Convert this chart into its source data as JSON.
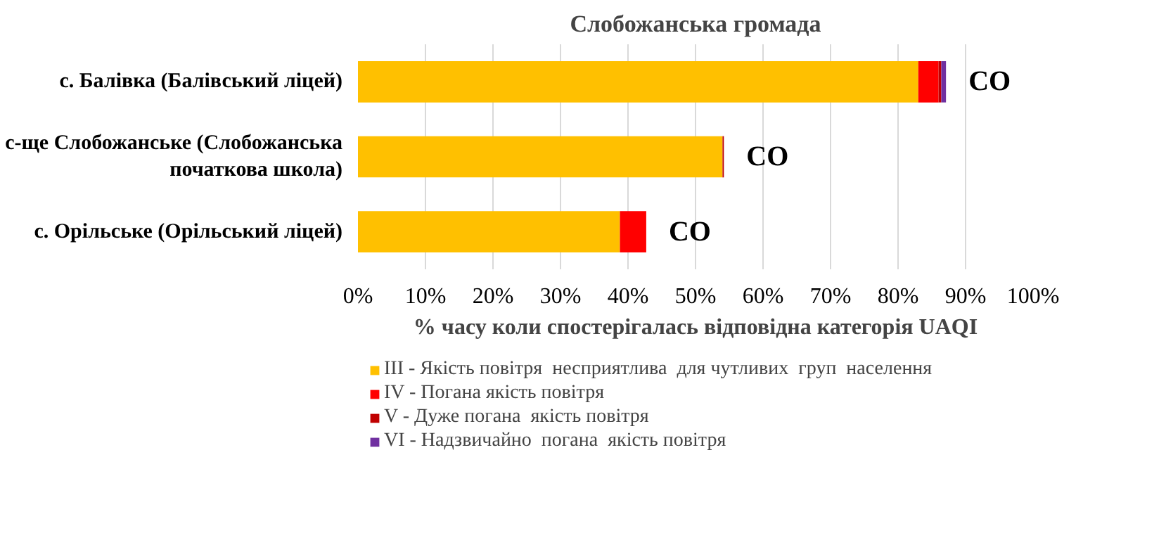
{
  "chart_data": {
    "type": "bar",
    "orientation": "horizontal",
    "stacked": true,
    "title": "Слобожанська громада",
    "xlabel": "% часу коли спостерігалась відповідна категорія UAQI",
    "categories": [
      "с. Балівка (Балівський ліцей)",
      "с-ще Слобожанське (Слобожанська\nпочаткова школа)",
      "с. Орільське (Орільський ліцей)"
    ],
    "series": [
      {
        "name": "III - Якість повітря  несприятлива  для чутливих  груп  населення",
        "color": "#ffc000",
        "values": [
          83.0,
          54.0,
          38.8
        ]
      },
      {
        "name": "IV - Погана якість повітря",
        "color": "#ff0000",
        "values": [
          3.0,
          0,
          3.9
        ]
      },
      {
        "name": "V - Дуже погана  якість повітря",
        "color": "#c00000",
        "values": [
          0.4,
          0.2,
          0
        ]
      },
      {
        "name": "VI - Надзвичайно  погана  якість повітря",
        "color": "#7030a0",
        "values": [
          0.7,
          0,
          0
        ]
      }
    ],
    "xlim": [
      0,
      100
    ],
    "xticks": [
      {
        "value": 0,
        "label": "0%"
      },
      {
        "value": 10,
        "label": "10%"
      },
      {
        "value": 20,
        "label": "20%"
      },
      {
        "value": 30,
        "label": "30%"
      },
      {
        "value": 40,
        "label": "40%"
      },
      {
        "value": 50,
        "label": "50%"
      },
      {
        "value": 60,
        "label": "60%"
      },
      {
        "value": 70,
        "label": "70%"
      },
      {
        "value": 80,
        "label": "80%"
      },
      {
        "value": 90,
        "label": "90%"
      },
      {
        "value": 100,
        "label": "100%"
      }
    ],
    "annotations": [
      {
        "text": "CO",
        "x": 87.1,
        "y": "с. Балівка (Балівський ліцей)"
      },
      {
        "text": "CO",
        "x": 54.2,
        "y": "с-ще Слобожанське (Слобожанська\nпочаткова школа)"
      },
      {
        "text": "CO",
        "x": 42.7,
        "y": "с. Орільське (Орільський ліцей)"
      }
    ],
    "grid": "x",
    "legend": "bottom left"
  }
}
